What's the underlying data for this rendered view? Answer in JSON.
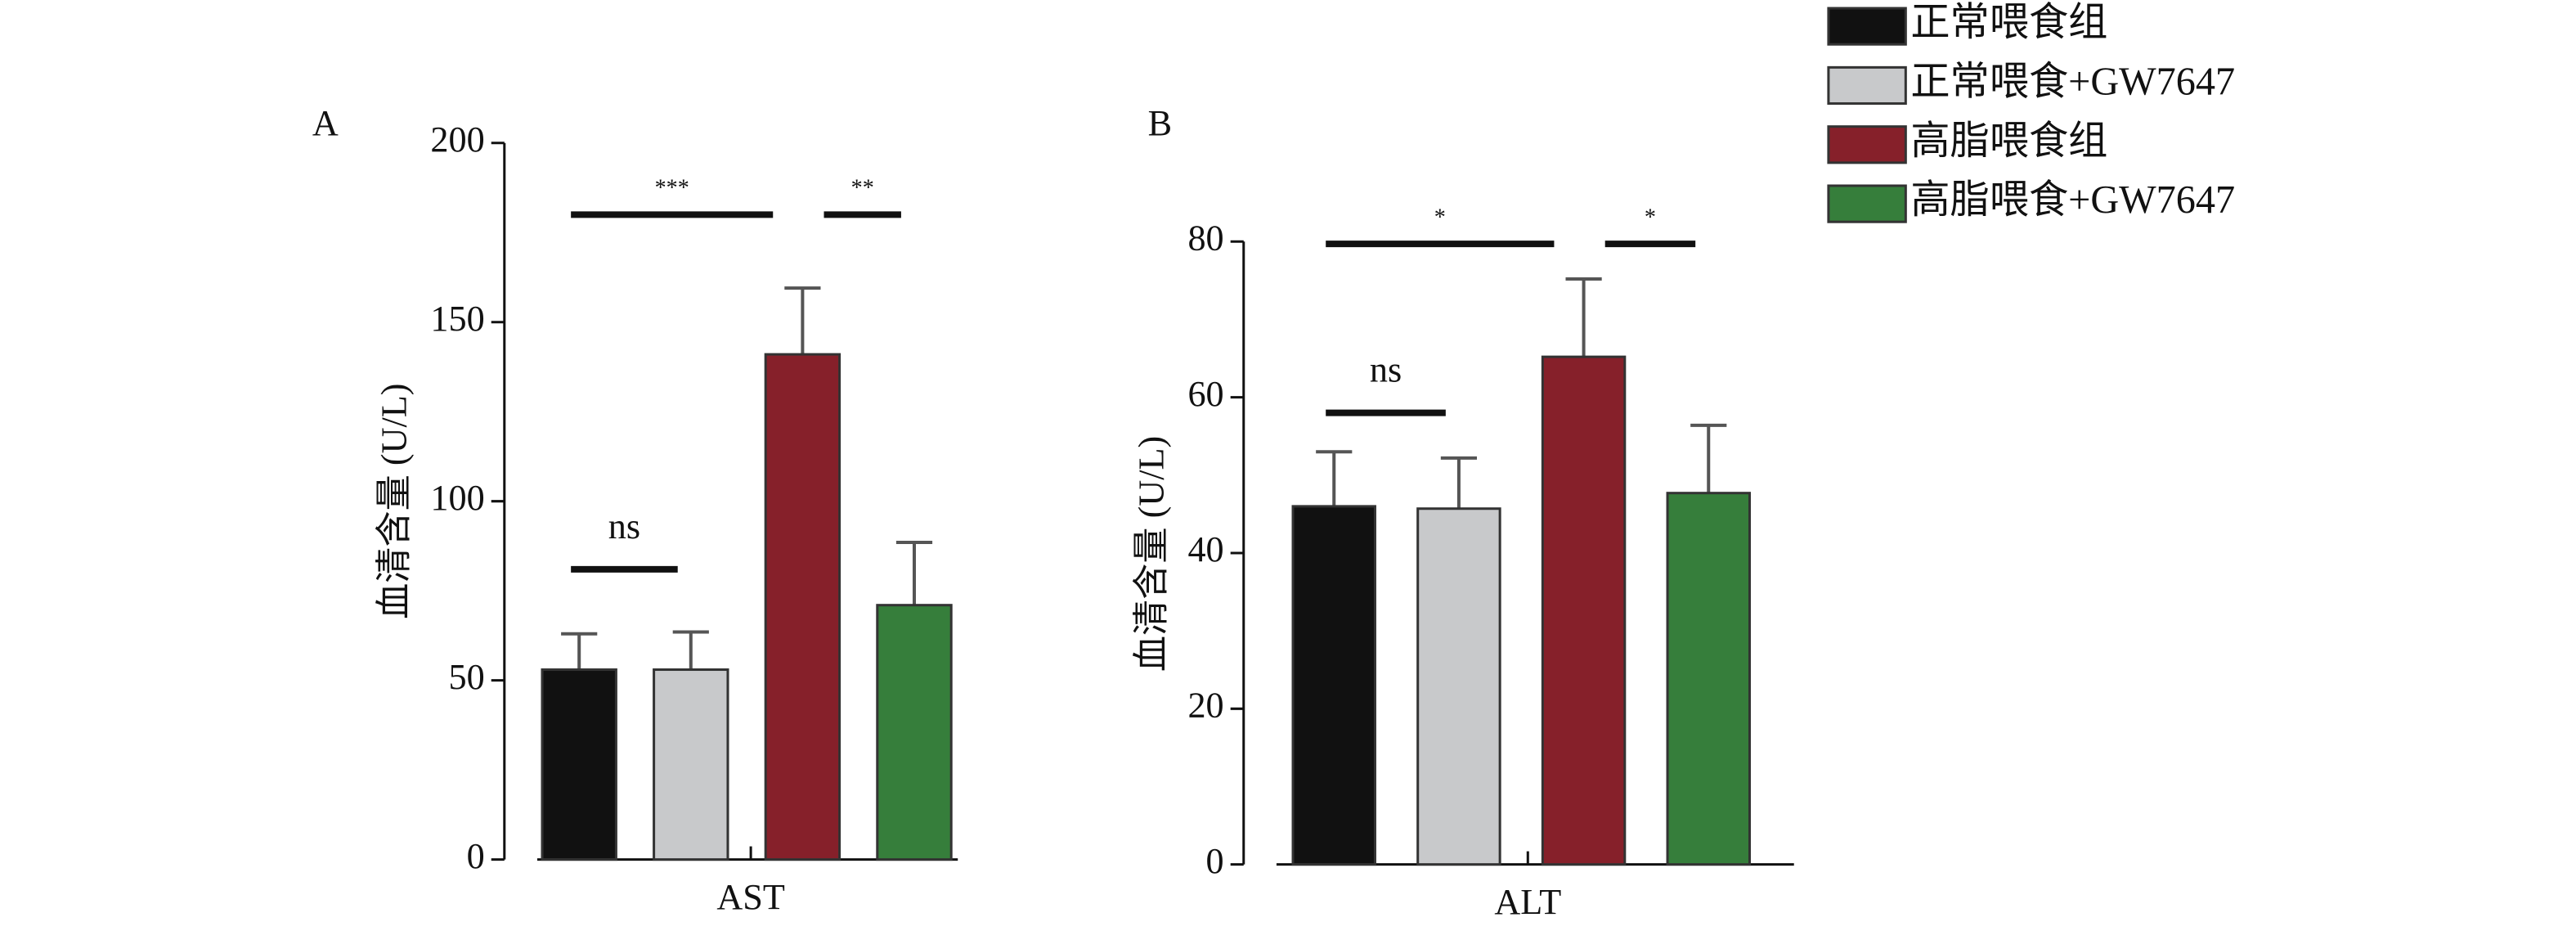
{
  "chart_data": [
    {
      "type": "bar",
      "panel": "A",
      "ylabel": "血清含量 (U/L)",
      "categories": [
        "AST"
      ],
      "ylim": [
        0,
        200
      ],
      "yticks": [
        0,
        50,
        100,
        150,
        200
      ],
      "series": [
        {
          "name": "正常喂食组",
          "color": "#111111",
          "values": [
            53
          ],
          "errors": [
            10
          ]
        },
        {
          "name": "正常喂食+GW7647",
          "color": "#c8c9cb",
          "values": [
            53
          ],
          "errors": [
            10.5
          ]
        },
        {
          "name": "高脂喂食组",
          "color": "#86202a",
          "values": [
            141
          ],
          "errors": [
            18.5
          ]
        },
        {
          "name": "高脂喂食+GW7647",
          "color": "#367e3b",
          "values": [
            71
          ],
          "errors": [
            17.5
          ]
        }
      ],
      "annotations": [
        {
          "text": "ns",
          "from": 0,
          "to": 1,
          "y": 81
        },
        {
          "text": "***",
          "from": 0,
          "to": 2,
          "y": 180
        },
        {
          "text": "**",
          "from": 2,
          "to": 3,
          "y": 180
        }
      ]
    },
    {
      "type": "bar",
      "panel": "B",
      "ylabel": "血清含量 (U/L)",
      "categories": [
        "ALT"
      ],
      "ylim": [
        0,
        80
      ],
      "yticks": [
        0,
        20,
        40,
        60,
        80
      ],
      "series": [
        {
          "color": "#111111",
          "values": [
            46
          ],
          "errors": [
            7
          ]
        },
        {
          "color": "#c8c9cb",
          "values": [
            45.7
          ],
          "errors": [
            6.5
          ]
        },
        {
          "color": "#86202a",
          "values": [
            65.2
          ],
          "errors": [
            10
          ]
        },
        {
          "color": "#367e3b",
          "values": [
            47.7
          ],
          "errors": [
            8.7
          ]
        }
      ],
      "annotations": [
        {
          "text": "ns",
          "from": 0,
          "to": 1,
          "y": 58
        },
        {
          "text": "*",
          "from": 0,
          "to": 2,
          "y": 79.7
        },
        {
          "text": "*",
          "from": 2,
          "to": 3,
          "y": 79.7
        }
      ]
    }
  ]
}
